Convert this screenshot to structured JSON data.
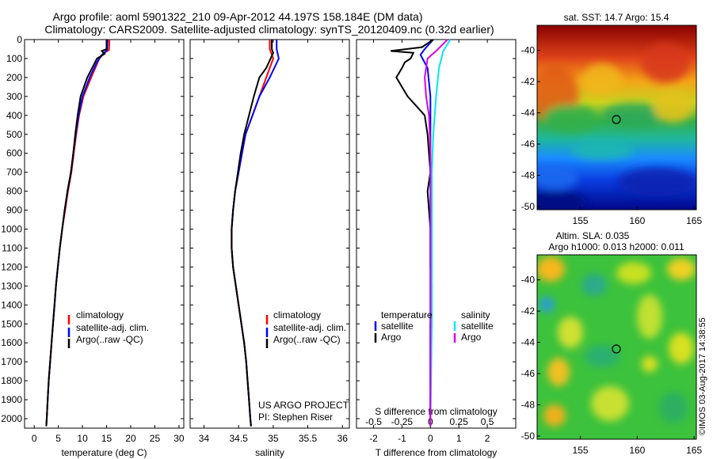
{
  "header": {
    "line1": "Argo profile: aoml 5901322_210 09-Apr-2012 44.197S 158.184E (DM data)",
    "line2": "Climatology: CARS2009. Satellite-adjusted climatology: synTS_20120409.nc (0.32d earlier)"
  },
  "side_label": "©IMOS 03-Aug-2017 14:38:55",
  "colors": {
    "climatology": "#ff0000",
    "satellite": "#0000ff",
    "argo": "#000000",
    "sal_satellite": "#00e5ff",
    "sal_argo": "#dd00dd"
  },
  "chart_data": [
    {
      "type": "line",
      "xlabel": "temperature (deg C)",
      "ylabel": "",
      "xlim": [
        -2,
        31
      ],
      "ylim": [
        2050,
        0
      ],
      "xticks": [
        "0",
        "5",
        "10",
        "15",
        "20",
        "25",
        "30"
      ],
      "xtick_values": [
        0,
        5,
        10,
        15,
        20,
        25,
        30
      ],
      "yticks": [
        "0",
        "100",
        "200",
        "300",
        "400",
        "500",
        "600",
        "700",
        "800",
        "900",
        "1000",
        "1100",
        "1200",
        "1300",
        "1400",
        "1500",
        "1600",
        "1700",
        "1800",
        "1900",
        "2000"
      ],
      "legend": [
        "climatology",
        "satellite-adj. clim.",
        "Argo(..raw -QC)"
      ],
      "series": [
        {
          "name": "climatology",
          "color": "#ff0000",
          "points": [
            [
              15.6,
              0
            ],
            [
              15.5,
              55
            ],
            [
              14.5,
              70
            ],
            [
              13.5,
              100
            ],
            [
              11.8,
              200
            ],
            [
              10.2,
              300
            ],
            [
              9.3,
              400
            ],
            [
              8.7,
              500
            ],
            [
              8.2,
              600
            ],
            [
              7.7,
              700
            ],
            [
              7.0,
              800
            ],
            [
              6.4,
              900
            ],
            [
              5.8,
              1000
            ],
            [
              5.3,
              1100
            ],
            [
              4.9,
              1200
            ],
            [
              4.5,
              1300
            ],
            [
              4.2,
              1400
            ],
            [
              3.9,
              1500
            ],
            [
              3.6,
              1600
            ],
            [
              3.3,
              1700
            ],
            [
              3.0,
              1800
            ],
            [
              2.8,
              1900
            ],
            [
              2.6,
              2000
            ],
            [
              2.5,
              2040
            ]
          ]
        },
        {
          "name": "satellite-adj. clim.",
          "color": "#0000ff",
          "points": [
            [
              15.2,
              0
            ],
            [
              15.1,
              55
            ],
            [
              14.0,
              80
            ],
            [
              13.0,
              120
            ],
            [
              11.5,
              200
            ],
            [
              10.0,
              300
            ],
            [
              9.2,
              400
            ],
            [
              8.6,
              500
            ],
            [
              8.1,
              600
            ],
            [
              7.6,
              700
            ],
            [
              6.9,
              800
            ],
            [
              6.3,
              900
            ],
            [
              5.8,
              1000
            ],
            [
              5.3,
              1100
            ],
            [
              4.9,
              1200
            ],
            [
              4.5,
              1300
            ],
            [
              4.2,
              1400
            ],
            [
              3.9,
              1500
            ],
            [
              3.6,
              1600
            ],
            [
              3.3,
              1700
            ],
            [
              3.0,
              1800
            ],
            [
              2.8,
              1900
            ],
            [
              2.6,
              2000
            ],
            [
              2.5,
              2040
            ]
          ]
        },
        {
          "name": "Argo(..raw -QC)",
          "color": "#000000",
          "points": [
            [
              15.0,
              0
            ],
            [
              15.0,
              50
            ],
            [
              14.0,
              60
            ],
            [
              14.6,
              75
            ],
            [
              13.0,
              100
            ],
            [
              11.0,
              200
            ],
            [
              9.6,
              300
            ],
            [
              9.0,
              400
            ],
            [
              8.5,
              500
            ],
            [
              8.1,
              600
            ],
            [
              7.6,
              700
            ],
            [
              6.9,
              800
            ],
            [
              6.3,
              900
            ],
            [
              5.8,
              1000
            ],
            [
              5.3,
              1100
            ],
            [
              4.9,
              1200
            ],
            [
              4.5,
              1300
            ],
            [
              4.2,
              1400
            ],
            [
              3.9,
              1500
            ],
            [
              3.6,
              1600
            ],
            [
              3.3,
              1700
            ],
            [
              3.0,
              1800
            ],
            [
              2.8,
              1900
            ],
            [
              2.6,
              2000
            ],
            [
              2.5,
              2040
            ]
          ]
        }
      ]
    },
    {
      "type": "line",
      "xlabel": "salinity",
      "xlim": [
        33.8,
        36.1
      ],
      "ylim": [
        2050,
        0
      ],
      "xticks": [
        "34",
        "34.5",
        "35",
        "35.5",
        "36"
      ],
      "xtick_values": [
        34,
        34.5,
        35,
        35.5,
        36
      ],
      "legend": [
        "climatology",
        "satellite-adj. clim.",
        "Argo(..raw -QC)"
      ],
      "annotation": [
        "US ARGO PROJECT",
        "PI: Stephen Riser"
      ],
      "series": [
        {
          "name": "climatology",
          "color": "#ff0000",
          "points": [
            [
              34.95,
              0
            ],
            [
              34.95,
              50
            ],
            [
              35.0,
              100
            ],
            [
              34.9,
              200
            ],
            [
              34.8,
              300
            ],
            [
              34.7,
              400
            ],
            [
              34.6,
              500
            ],
            [
              34.55,
              600
            ],
            [
              34.5,
              700
            ],
            [
              34.45,
              800
            ],
            [
              34.42,
              900
            ],
            [
              34.4,
              1000
            ],
            [
              34.4,
              1100
            ],
            [
              34.42,
              1200
            ],
            [
              34.46,
              1300
            ],
            [
              34.5,
              1400
            ],
            [
              34.54,
              1500
            ],
            [
              34.58,
              1600
            ],
            [
              34.61,
              1700
            ],
            [
              34.63,
              1800
            ],
            [
              34.65,
              1900
            ],
            [
              34.67,
              2000
            ],
            [
              34.68,
              2040
            ]
          ]
        },
        {
          "name": "satellite-adj. clim.",
          "color": "#0000ff",
          "points": [
            [
              35.05,
              0
            ],
            [
              35.05,
              50
            ],
            [
              35.08,
              100
            ],
            [
              34.95,
              200
            ],
            [
              34.8,
              300
            ],
            [
              34.7,
              400
            ],
            [
              34.6,
              500
            ],
            [
              34.55,
              600
            ],
            [
              34.5,
              700
            ],
            [
              34.45,
              800
            ],
            [
              34.42,
              900
            ],
            [
              34.4,
              1000
            ],
            [
              34.4,
              1100
            ],
            [
              34.42,
              1200
            ],
            [
              34.46,
              1300
            ],
            [
              34.5,
              1400
            ],
            [
              34.54,
              1500
            ],
            [
              34.58,
              1600
            ],
            [
              34.61,
              1700
            ],
            [
              34.63,
              1800
            ],
            [
              34.65,
              1900
            ],
            [
              34.67,
              2000
            ],
            [
              34.68,
              2040
            ]
          ]
        },
        {
          "name": "Argo(..raw -QC)",
          "color": "#000000",
          "points": [
            [
              34.98,
              0
            ],
            [
              34.98,
              50
            ],
            [
              35.0,
              70
            ],
            [
              34.9,
              150
            ],
            [
              34.8,
              200
            ],
            [
              34.72,
              300
            ],
            [
              34.65,
              400
            ],
            [
              34.58,
              500
            ],
            [
              34.53,
              600
            ],
            [
              34.49,
              700
            ],
            [
              34.45,
              800
            ],
            [
              34.42,
              900
            ],
            [
              34.4,
              1000
            ],
            [
              34.4,
              1100
            ],
            [
              34.42,
              1200
            ],
            [
              34.46,
              1300
            ],
            [
              34.5,
              1400
            ],
            [
              34.54,
              1500
            ],
            [
              34.58,
              1600
            ],
            [
              34.61,
              1700
            ],
            [
              34.63,
              1800
            ],
            [
              34.65,
              1900
            ],
            [
              34.67,
              2000
            ],
            [
              34.68,
              2040
            ]
          ]
        }
      ]
    },
    {
      "type": "line",
      "xlabel": "T difference from climatology",
      "top_axis_label": "S difference from climatology",
      "xlim": [
        -2.6,
        3.0
      ],
      "ylim": [
        2050,
        0
      ],
      "xticks": [
        "-2",
        "-1",
        "0",
        "1",
        "2"
      ],
      "xtick_values": [
        -2,
        -1,
        0,
        1,
        2
      ],
      "top_xticks": [
        "-0.5",
        "-0.25",
        "0",
        "0.25",
        "0.5"
      ],
      "legend_temperature": {
        "heading": "temperature",
        "items": [
          "satellite",
          "Argo"
        ]
      },
      "legend_salinity": {
        "heading": "salinity",
        "items": [
          "satellite",
          "Argo"
        ]
      },
      "series": [
        {
          "name": "satellite",
          "group": "temperature",
          "color": "#0000ff",
          "points": [
            [
              0.1,
              0
            ],
            [
              -0.2,
              50
            ],
            [
              -0.35,
              80
            ],
            [
              -0.1,
              150
            ],
            [
              0,
              300
            ],
            [
              0,
              600
            ],
            [
              0,
              1000
            ],
            [
              0,
              1500
            ],
            [
              0,
              2040
            ]
          ]
        },
        {
          "name": "Argo",
          "group": "temperature",
          "color": "#000000",
          "points": [
            [
              0.1,
              0
            ],
            [
              -0.3,
              40
            ],
            [
              -1.4,
              60
            ],
            [
              -0.6,
              70
            ],
            [
              -0.7,
              100
            ],
            [
              -0.9,
              120
            ],
            [
              -1.0,
              150
            ],
            [
              -1.2,
              200
            ],
            [
              -1.0,
              250
            ],
            [
              -0.8,
              300
            ],
            [
              -0.5,
              350
            ],
            [
              -0.2,
              400
            ],
            [
              -0.1,
              500
            ],
            [
              0,
              700
            ],
            [
              -0.1,
              800
            ],
            [
              0,
              1000
            ],
            [
              0,
              1200
            ],
            [
              0.05,
              1300
            ],
            [
              0,
              1500
            ],
            [
              0,
              2040
            ]
          ]
        },
        {
          "name": "satellite",
          "group": "salinity",
          "color": "#00e5ff",
          "points": [
            [
              0.7,
              0
            ],
            [
              0.45,
              60
            ],
            [
              0.3,
              150
            ],
            [
              0.2,
              300
            ],
            [
              0.1,
              500
            ],
            [
              0.05,
              700
            ],
            [
              0.05,
              1000
            ],
            [
              0.05,
              1500
            ],
            [
              0,
              2040
            ]
          ]
        },
        {
          "name": "Argo",
          "group": "salinity",
          "color": "#dd00dd",
          "points": [
            [
              0.6,
              0
            ],
            [
              0.2,
              60
            ],
            [
              -0.1,
              100
            ],
            [
              -0.2,
              200
            ],
            [
              -0.15,
              300
            ],
            [
              -0.05,
              400
            ],
            [
              0,
              600
            ],
            [
              0,
              1000
            ],
            [
              0,
              2040
            ]
          ]
        }
      ]
    },
    {
      "type": "heatmap",
      "title": "sat. SST: 14.7 Argo: 15.4",
      "xticks": [
        "155",
        "160",
        "165"
      ],
      "yticks": [
        "-40",
        "-42",
        "-44",
        "-46",
        "-48",
        "-50"
      ],
      "xlim": [
        151.2,
        165.2
      ],
      "ylim": [
        -50.2,
        -38.4
      ],
      "marker": {
        "lon": 158.184,
        "lat": -44.197
      }
    },
    {
      "type": "heatmap",
      "title": "Altim. SLA: 0.035",
      "subtitle": "Argo h1000: 0.013 h2000: 0.011",
      "xticks": [
        "155",
        "160",
        "165"
      ],
      "yticks": [
        "-40",
        "-42",
        "-44",
        "-46",
        "-48",
        "-50"
      ],
      "xlim": [
        151.2,
        165.2
      ],
      "ylim": [
        -50.2,
        -38.4
      ],
      "marker": {
        "lon": 158.184,
        "lat": -44.197
      }
    }
  ]
}
